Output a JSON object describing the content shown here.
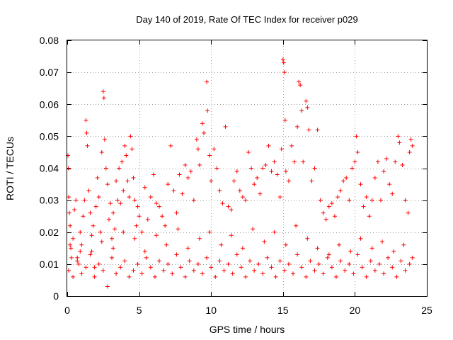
{
  "chart_data": {
    "type": "scatter",
    "title": "Day 140 of 2019, Rate Of TEC Index for receiver p029",
    "xlabel": "GPS time / hours",
    "ylabel": "ROTI / TECUs",
    "xlim": [
      0,
      25
    ],
    "ylim": [
      0,
      0.08
    ],
    "x_ticks": [
      0,
      5,
      10,
      15,
      20,
      25
    ],
    "y_ticks": [
      0,
      0.01,
      0.02,
      0.03,
      0.04,
      0.05,
      0.06,
      0.07,
      0.08
    ],
    "x_tick_labels": [
      "0",
      "5",
      "10",
      "15",
      "20",
      "25"
    ],
    "y_tick_labels": [
      "0",
      "0.01",
      "0.02",
      "0.03",
      "0.04",
      "0.05",
      "0.06",
      "0.07",
      "0.08"
    ],
    "grid": true,
    "marker": "+",
    "series": [
      {
        "name": "ROTI",
        "color": "#ff0000",
        "points": [
          [
            0.05,
            0.044
          ],
          [
            0.08,
            0.04
          ],
          [
            0.1,
            0.031
          ],
          [
            0.15,
            0.026
          ],
          [
            0.2,
            0.022
          ],
          [
            0.25,
            0.015
          ],
          [
            0.3,
            0.012
          ],
          [
            0.4,
            0.018
          ],
          [
            0.5,
            0.027
          ],
          [
            0.6,
            0.03
          ],
          [
            0.7,
            0.012
          ],
          [
            0.8,
            0.01
          ],
          [
            0.9,
            0.02
          ],
          [
            1.0,
            0.016
          ],
          [
            1.1,
            0.025
          ],
          [
            1.2,
            0.03
          ],
          [
            1.3,
            0.055
          ],
          [
            1.35,
            0.051
          ],
          [
            1.4,
            0.047
          ],
          [
            1.5,
            0.033
          ],
          [
            1.6,
            0.026
          ],
          [
            1.7,
            0.014
          ],
          [
            1.8,
            0.022
          ],
          [
            1.9,
            0.009
          ],
          [
            2.0,
            0.028
          ],
          [
            2.1,
            0.037
          ],
          [
            2.2,
            0.031
          ],
          [
            2.3,
            0.02
          ],
          [
            2.4,
            0.045
          ],
          [
            2.5,
            0.064
          ],
          [
            2.55,
            0.062
          ],
          [
            2.6,
            0.049
          ],
          [
            2.7,
            0.04
          ],
          [
            2.8,
            0.035
          ],
          [
            2.9,
            0.024
          ],
          [
            3.0,
            0.029
          ],
          [
            3.1,
            0.018
          ],
          [
            3.2,
            0.026
          ],
          [
            3.3,
            0.021
          ],
          [
            3.4,
            0.036
          ],
          [
            3.5,
            0.03
          ],
          [
            3.6,
            0.04
          ],
          [
            3.7,
            0.029
          ],
          [
            3.8,
            0.042
          ],
          [
            3.9,
            0.033
          ],
          [
            4.0,
            0.047
          ],
          [
            4.1,
            0.044
          ],
          [
            4.2,
            0.036
          ],
          [
            4.3,
            0.031
          ],
          [
            4.4,
            0.05
          ],
          [
            4.5,
            0.046
          ],
          [
            4.6,
            0.037
          ],
          [
            4.7,
            0.03
          ],
          [
            4.8,
            0.022
          ],
          [
            4.9,
            0.028
          ],
          [
            5.0,
            0.025
          ],
          [
            5.2,
            0.02
          ],
          [
            5.4,
            0.034
          ],
          [
            5.6,
            0.024
          ],
          [
            5.8,
            0.031
          ],
          [
            6.0,
            0.038
          ],
          [
            6.2,
            0.029
          ],
          [
            6.4,
            0.028
          ],
          [
            6.6,
            0.025
          ],
          [
            6.8,
            0.022
          ],
          [
            7.0,
            0.035
          ],
          [
            7.2,
            0.047
          ],
          [
            7.4,
            0.033
          ],
          [
            7.6,
            0.026
          ],
          [
            7.8,
            0.038
          ],
          [
            8.0,
            0.032
          ],
          [
            8.2,
            0.041
          ],
          [
            8.4,
            0.037
          ],
          [
            8.6,
            0.039
          ],
          [
            8.8,
            0.03
          ],
          [
            9.0,
            0.049
          ],
          [
            9.1,
            0.046
          ],
          [
            9.2,
            0.041
          ],
          [
            9.4,
            0.054
          ],
          [
            9.5,
            0.051
          ],
          [
            9.7,
            0.067
          ],
          [
            9.75,
            0.058
          ],
          [
            9.9,
            0.044
          ],
          [
            10.0,
            0.036
          ],
          [
            10.2,
            0.046
          ],
          [
            10.4,
            0.04
          ],
          [
            10.6,
            0.033
          ],
          [
            10.8,
            0.029
          ],
          [
            11.0,
            0.053
          ],
          [
            11.2,
            0.028
          ],
          [
            11.4,
            0.027
          ],
          [
            11.6,
            0.036
          ],
          [
            11.8,
            0.039
          ],
          [
            12.0,
            0.033
          ],
          [
            12.2,
            0.031
          ],
          [
            12.4,
            0.03
          ],
          [
            12.6,
            0.045
          ],
          [
            12.8,
            0.04
          ],
          [
            13.0,
            0.035
          ],
          [
            13.2,
            0.037
          ],
          [
            13.4,
            0.032
          ],
          [
            13.6,
            0.04
          ],
          [
            13.8,
            0.041
          ],
          [
            14.0,
            0.047
          ],
          [
            14.2,
            0.039
          ],
          [
            14.4,
            0.042
          ],
          [
            14.6,
            0.038
          ],
          [
            14.8,
            0.031
          ],
          [
            14.9,
            0.046
          ],
          [
            15.0,
            0.074
          ],
          [
            15.05,
            0.073
          ],
          [
            15.1,
            0.07
          ],
          [
            15.15,
            0.055
          ],
          [
            15.2,
            0.039
          ],
          [
            15.4,
            0.036
          ],
          [
            15.6,
            0.047
          ],
          [
            15.8,
            0.042
          ],
          [
            16.0,
            0.053
          ],
          [
            16.1,
            0.067
          ],
          [
            16.2,
            0.066
          ],
          [
            16.3,
            0.058
          ],
          [
            16.4,
            0.042
          ],
          [
            16.6,
            0.061
          ],
          [
            16.7,
            0.059
          ],
          [
            16.8,
            0.052
          ],
          [
            17.0,
            0.036
          ],
          [
            17.2,
            0.04
          ],
          [
            17.4,
            0.052
          ],
          [
            17.6,
            0.03
          ],
          [
            17.8,
            0.026
          ],
          [
            18.0,
            0.024
          ],
          [
            18.2,
            0.028
          ],
          [
            18.4,
            0.029
          ],
          [
            18.6,
            0.025
          ],
          [
            18.8,
            0.031
          ],
          [
            19.0,
            0.033
          ],
          [
            19.2,
            0.036
          ],
          [
            19.4,
            0.037
          ],
          [
            19.6,
            0.03
          ],
          [
            19.8,
            0.04
          ],
          [
            20.0,
            0.042
          ],
          [
            20.1,
            0.05
          ],
          [
            20.2,
            0.045
          ],
          [
            20.4,
            0.035
          ],
          [
            20.6,
            0.028
          ],
          [
            20.8,
            0.031
          ],
          [
            21.0,
            0.025
          ],
          [
            21.2,
            0.03
          ],
          [
            21.4,
            0.037
          ],
          [
            21.6,
            0.042
          ],
          [
            21.8,
            0.03
          ],
          [
            22.0,
            0.039
          ],
          [
            22.2,
            0.043
          ],
          [
            22.4,
            0.035
          ],
          [
            22.6,
            0.032
          ],
          [
            22.8,
            0.042
          ],
          [
            23.0,
            0.05
          ],
          [
            23.1,
            0.048
          ],
          [
            23.3,
            0.041
          ],
          [
            23.5,
            0.03
          ],
          [
            23.7,
            0.026
          ],
          [
            23.8,
            0.045
          ],
          [
            23.9,
            0.049
          ],
          [
            24.0,
            0.047
          ],
          [
            0.1,
            0.008
          ],
          [
            0.4,
            0.006
          ],
          [
            0.7,
            0.011
          ],
          [
            1.0,
            0.007
          ],
          [
            1.3,
            0.009
          ],
          [
            1.6,
            0.013
          ],
          [
            1.9,
            0.006
          ],
          [
            2.2,
            0.01
          ],
          [
            2.5,
            0.008
          ],
          [
            2.8,
            0.003
          ],
          [
            3.1,
            0.012
          ],
          [
            3.4,
            0.007
          ],
          [
            3.7,
            0.009
          ],
          [
            4.0,
            0.011
          ],
          [
            4.3,
            0.006
          ],
          [
            4.6,
            0.008
          ],
          [
            4.9,
            0.01
          ],
          [
            5.2,
            0.007
          ],
          [
            5.5,
            0.012
          ],
          [
            5.8,
            0.009
          ],
          [
            6.1,
            0.006
          ],
          [
            6.4,
            0.011
          ],
          [
            6.7,
            0.008
          ],
          [
            7.0,
            0.01
          ],
          [
            7.3,
            0.007
          ],
          [
            7.6,
            0.013
          ],
          [
            7.9,
            0.009
          ],
          [
            8.2,
            0.006
          ],
          [
            8.5,
            0.011
          ],
          [
            8.8,
            0.008
          ],
          [
            9.1,
            0.01
          ],
          [
            9.4,
            0.007
          ],
          [
            9.7,
            0.012
          ],
          [
            10.0,
            0.009
          ],
          [
            10.3,
            0.006
          ],
          [
            10.6,
            0.011
          ],
          [
            10.9,
            0.008
          ],
          [
            11.2,
            0.01
          ],
          [
            11.5,
            0.007
          ],
          [
            11.8,
            0.013
          ],
          [
            12.1,
            0.009
          ],
          [
            12.4,
            0.006
          ],
          [
            12.7,
            0.011
          ],
          [
            13.0,
            0.008
          ],
          [
            13.3,
            0.01
          ],
          [
            13.6,
            0.007
          ],
          [
            13.9,
            0.012
          ],
          [
            14.2,
            0.009
          ],
          [
            14.5,
            0.006
          ],
          [
            14.8,
            0.011
          ],
          [
            15.1,
            0.008
          ],
          [
            15.4,
            0.01
          ],
          [
            15.7,
            0.007
          ],
          [
            16.0,
            0.013
          ],
          [
            16.3,
            0.009
          ],
          [
            16.6,
            0.006
          ],
          [
            16.9,
            0.011
          ],
          [
            17.2,
            0.008
          ],
          [
            17.5,
            0.01
          ],
          [
            17.8,
            0.007
          ],
          [
            18.1,
            0.012
          ],
          [
            18.4,
            0.009
          ],
          [
            18.7,
            0.006
          ],
          [
            19.0,
            0.011
          ],
          [
            19.3,
            0.008
          ],
          [
            19.6,
            0.01
          ],
          [
            19.9,
            0.007
          ],
          [
            20.2,
            0.013
          ],
          [
            20.5,
            0.009
          ],
          [
            20.8,
            0.006
          ],
          [
            21.1,
            0.011
          ],
          [
            21.4,
            0.008
          ],
          [
            21.7,
            0.01
          ],
          [
            22.0,
            0.007
          ],
          [
            22.3,
            0.012
          ],
          [
            22.6,
            0.009
          ],
          [
            22.9,
            0.006
          ],
          [
            23.2,
            0.011
          ],
          [
            23.5,
            0.008
          ],
          [
            23.8,
            0.01
          ],
          [
            0.2,
            0.016
          ],
          [
            0.9,
            0.014
          ],
          [
            1.7,
            0.019
          ],
          [
            2.4,
            0.017
          ],
          [
            3.2,
            0.015
          ],
          [
            3.9,
            0.02
          ],
          [
            4.7,
            0.018
          ],
          [
            5.4,
            0.014
          ],
          [
            6.2,
            0.019
          ],
          [
            6.9,
            0.016
          ],
          [
            7.7,
            0.021
          ],
          [
            8.4,
            0.015
          ],
          [
            9.2,
            0.018
          ],
          [
            9.9,
            0.02
          ],
          [
            10.7,
            0.016
          ],
          [
            11.4,
            0.019
          ],
          [
            12.2,
            0.015
          ],
          [
            12.9,
            0.021
          ],
          [
            13.7,
            0.017
          ],
          [
            14.4,
            0.02
          ],
          [
            15.2,
            0.016
          ],
          [
            15.9,
            0.022
          ],
          [
            16.7,
            0.018
          ],
          [
            17.4,
            0.015
          ],
          [
            18.2,
            0.013
          ],
          [
            18.9,
            0.016
          ],
          [
            19.7,
            0.014
          ],
          [
            20.4,
            0.018
          ],
          [
            21.2,
            0.015
          ],
          [
            21.9,
            0.017
          ],
          [
            22.7,
            0.014
          ],
          [
            23.4,
            0.016
          ],
          [
            24.0,
            0.012
          ]
        ]
      }
    ]
  }
}
